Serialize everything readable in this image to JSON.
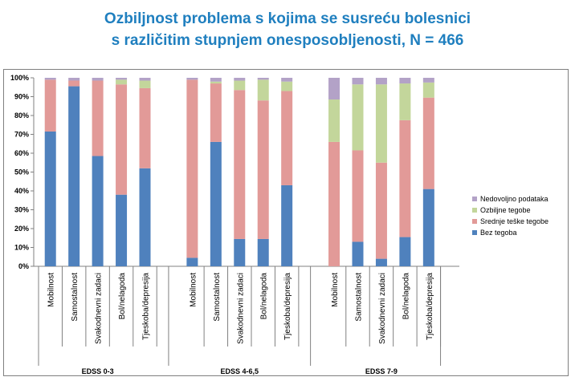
{
  "chart_data": {
    "type": "bar",
    "stacked": true,
    "percent": true,
    "title_line1": "Ozbiljnost problema s kojima se susreću bolesnici",
    "title_line2": "s različitim stupnjem onesposobljenosti, N = 466",
    "ylim": [
      0,
      100
    ],
    "yticks": [
      "0%",
      "10%",
      "20%",
      "30%",
      "40%",
      "50%",
      "60%",
      "70%",
      "80%",
      "90%",
      "100%"
    ],
    "groups": [
      {
        "label": "EDSS 0-3",
        "categories": [
          "Mobilnost",
          "Samostalnost",
          "Svakodnevni zadaci",
          "Bol/nelagoda",
          "Tjeskoba/depresija"
        ]
      },
      {
        "label": "EDSS 4-6,5",
        "categories": [
          "Mobilnost",
          "Samostalnost",
          "Svakodnevni zadaci",
          "Bol/nelagoda",
          "Tjeskoba/depresija"
        ]
      },
      {
        "label": "EDSS 7-9",
        "categories": [
          "Mobilnost",
          "Samostalnost",
          "Svakodnevni zadaci",
          "Bol/nelagoda",
          "Tjeskoba/depresija"
        ]
      }
    ],
    "series": [
      {
        "name": "Bez tegoba",
        "color": "#4f81bd",
        "values": [
          [
            71.5,
            95.5,
            58.5,
            38,
            52
          ],
          [
            4.5,
            66,
            14.5,
            14.5,
            43
          ],
          [
            0,
            13,
            4,
            15.5,
            41
          ]
        ]
      },
      {
        "name": "Srednje teške tegobe",
        "color": "#e29a98",
        "values": [
          [
            27.5,
            3,
            40,
            58.5,
            42.5
          ],
          [
            94.5,
            31,
            79,
            73.5,
            50
          ]
        ],
        "values_g3": [
          66,
          48.5,
          51,
          62,
          48.5
        ]
      },
      {
        "name": "Ozbiljne tegobe",
        "color": "#c3d69b",
        "values": [
          [
            0,
            0,
            0,
            2.5,
            4
          ],
          [
            0,
            1,
            5,
            11,
            5
          ]
        ],
        "values_g3": [
          22.5,
          35,
          41.5,
          19.5,
          8
        ]
      },
      {
        "name": "Nedovoljno podataka",
        "color": "#b3a2c7",
        "values": [
          [
            1,
            1.5,
            1.5,
            1,
            1.5
          ],
          [
            1,
            2,
            1.5,
            1,
            2
          ]
        ],
        "values_g3": [
          11.5,
          3.5,
          3.5,
          3,
          2.5
        ]
      }
    ],
    "legend_order": [
      "Nedovoljno podataka",
      "Ozbiljne tegobe",
      "Srednje teške tegobe",
      "Bez tegoba"
    ],
    "legend_position": "right",
    "grid": false
  }
}
